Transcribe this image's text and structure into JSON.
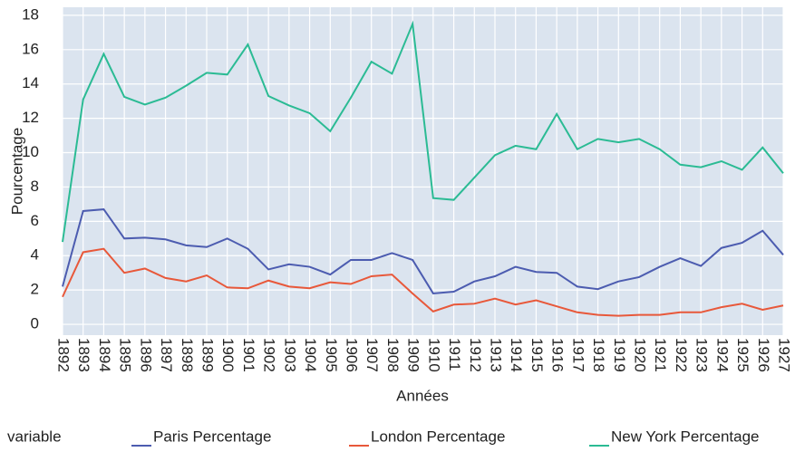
{
  "chart_data": {
    "type": "line",
    "x_label": "Années",
    "y_label": "Pourcentage",
    "legend_title": "variable",
    "legend": "bottom",
    "categories": [
      "1892",
      "1893",
      "1894",
      "1895",
      "1896",
      "1897",
      "1898",
      "1899",
      "1900",
      "1901",
      "1902",
      "1903",
      "1904",
      "1905",
      "1906",
      "1907",
      "1908",
      "1909",
      "1910",
      "1911",
      "1912",
      "1913",
      "1914",
      "1915",
      "1916",
      "1917",
      "1918",
      "1919",
      "1920",
      "1921",
      "1922",
      "1923",
      "1924",
      "1925",
      "1926",
      "1927"
    ],
    "series": [
      {
        "name": "Paris Percentage",
        "color": "#4c5cb0",
        "values": [
          2.2,
          6.6,
          6.7,
          5.0,
          5.05,
          4.95,
          4.6,
          4.5,
          5.0,
          4.4,
          3.2,
          3.5,
          3.35,
          2.9,
          3.75,
          3.75,
          4.15,
          3.75,
          1.8,
          1.9,
          2.5,
          2.8,
          3.35,
          3.05,
          3.0,
          2.2,
          2.05,
          2.5,
          2.75,
          3.35,
          3.85,
          3.4,
          4.45,
          4.75,
          5.45,
          4.05
        ]
      },
      {
        "name": "London Percentage",
        "color": "#e8583a",
        "values": [
          1.6,
          4.2,
          4.4,
          3.0,
          3.25,
          2.7,
          2.5,
          2.85,
          2.15,
          2.1,
          2.55,
          2.2,
          2.1,
          2.45,
          2.35,
          2.8,
          2.9,
          1.8,
          0.75,
          1.15,
          1.2,
          1.5,
          1.15,
          1.4,
          1.05,
          0.7,
          0.55,
          0.5,
          0.55,
          0.55,
          0.7,
          0.7,
          1.0,
          1.2,
          0.85,
          1.1
        ]
      },
      {
        "name": "New York Percentage",
        "color": "#2bbb94",
        "values": [
          4.8,
          13.1,
          15.75,
          13.25,
          12.8,
          13.2,
          13.9,
          14.65,
          14.55,
          16.3,
          13.3,
          12.75,
          12.3,
          11.25,
          13.2,
          15.3,
          14.6,
          17.5,
          7.35,
          7.25,
          8.55,
          9.85,
          10.4,
          10.2,
          12.25,
          10.2,
          10.8,
          10.6,
          10.8,
          10.2,
          9.3,
          9.15,
          9.5,
          9.0,
          10.3,
          8.8
        ]
      }
    ],
    "ylim": [
      -0.63,
      18.47
    ],
    "yticks": [
      0,
      2,
      4,
      6,
      8,
      10,
      12,
      14,
      16,
      18
    ],
    "grid": true
  }
}
